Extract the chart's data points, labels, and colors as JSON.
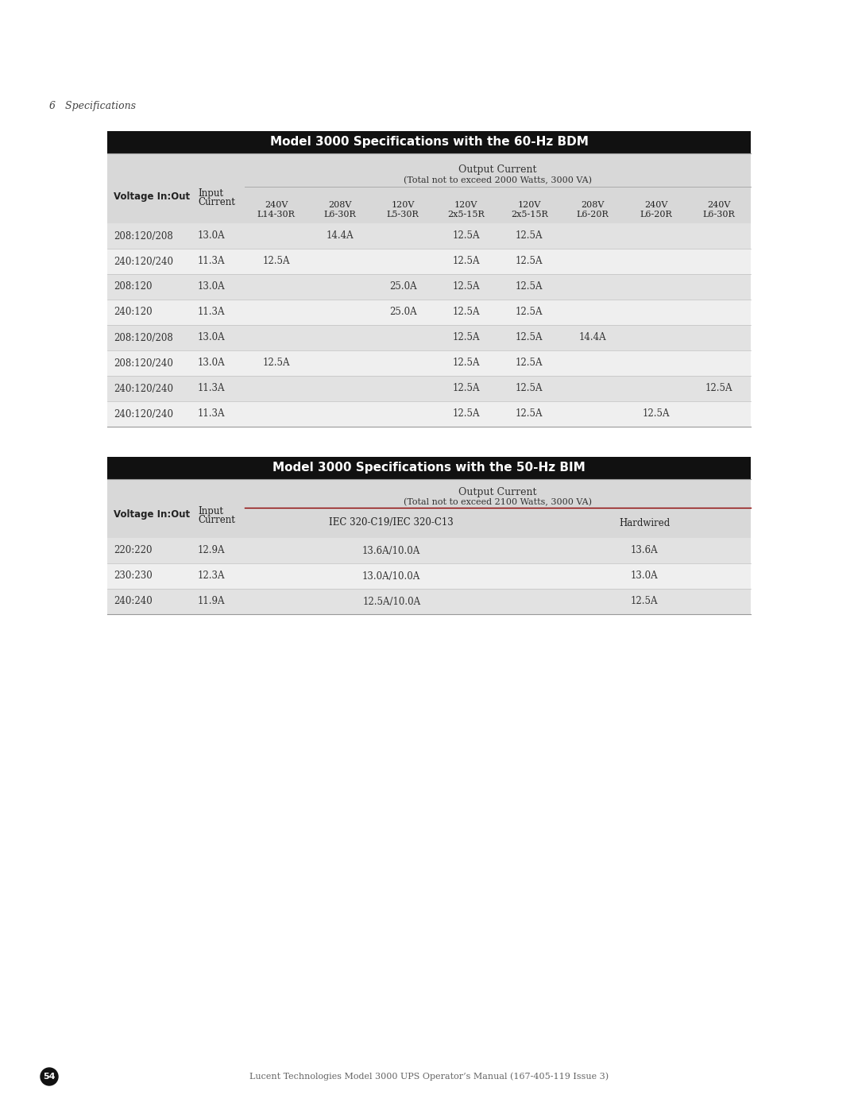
{
  "page_title": "6   Specifications",
  "bg_color": "#ffffff",
  "table1_title": "Model 3000 Specifications with the 60-Hz BDM",
  "table1_title_bg": "#111111",
  "table1_title_color": "#ffffff",
  "table1_header_bg": "#d8d8d8",
  "table1_row_bg_odd": "#e2e2e2",
  "table1_row_bg_even": "#efefef",
  "table1_output_current_label": "Output Current",
  "table1_output_current_sub": "(Total not to exceed 2000 Watts, 3000 VA)",
  "table1_col_headers": [
    "Voltage In:Out",
    "Input\nCurrent",
    "240V\nL14-30R",
    "208V\nL6-30R",
    "120V\nL5-30R",
    "120V\n2x5-15R",
    "120V\n2x5-15R",
    "208V\nL6-20R",
    "240V\nL6-20R",
    "240V\nL6-30R"
  ],
  "table1_rows": [
    [
      "208:120/208",
      "13.0A",
      "",
      "14.4A",
      "",
      "12.5A",
      "12.5A",
      "",
      "",
      ""
    ],
    [
      "240:120/240",
      "11.3A",
      "12.5A",
      "",
      "",
      "12.5A",
      "12.5A",
      "",
      "",
      ""
    ],
    [
      "208:120",
      "13.0A",
      "",
      "",
      "25.0A",
      "12.5A",
      "12.5A",
      "",
      "",
      ""
    ],
    [
      "240:120",
      "11.3A",
      "",
      "",
      "25.0A",
      "12.5A",
      "12.5A",
      "",
      "",
      ""
    ],
    [
      "208:120/208",
      "13.0A",
      "",
      "",
      "",
      "12.5A",
      "12.5A",
      "14.4A",
      "",
      ""
    ],
    [
      "208:120/240",
      "13.0A",
      "12.5A",
      "",
      "",
      "12.5A",
      "12.5A",
      "",
      "",
      ""
    ],
    [
      "240:120/240",
      "11.3A",
      "",
      "",
      "",
      "12.5A",
      "12.5A",
      "",
      "",
      "12.5A"
    ],
    [
      "240:120/240",
      "11.3A",
      "",
      "",
      "",
      "12.5A",
      "12.5A",
      "",
      "12.5A",
      ""
    ]
  ],
  "table2_title": "Model 3000 Specifications with the 50-Hz BIM",
  "table2_title_bg": "#111111",
  "table2_title_color": "#ffffff",
  "table2_header_bg": "#d8d8d8",
  "table2_row_bg_odd": "#e2e2e2",
  "table2_row_bg_even": "#efefef",
  "table2_output_current_label": "Output Current",
  "table2_output_current_sub": "(Total not to exceed 2100 Watts, 3000 VA)",
  "table2_col_headers": [
    "Voltage In:Out",
    "Input\nCurrent",
    "IEC 320-C19/IEC 320-C13",
    "Hardwired"
  ],
  "table2_rows": [
    [
      "220:220",
      "12.9A",
      "13.6A/10.0A",
      "13.6A"
    ],
    [
      "230:230",
      "12.3A",
      "13.0A/10.0A",
      "13.0A"
    ],
    [
      "240:240",
      "11.9A",
      "12.5A/10.0A",
      "12.5A"
    ]
  ],
  "footer_circle_color": "#111111",
  "footer_circle_text": "54",
  "footer_text": "Lucent Technologies Model 3000 UPS Operator’s Manual (167-405-119 Issue 3)"
}
